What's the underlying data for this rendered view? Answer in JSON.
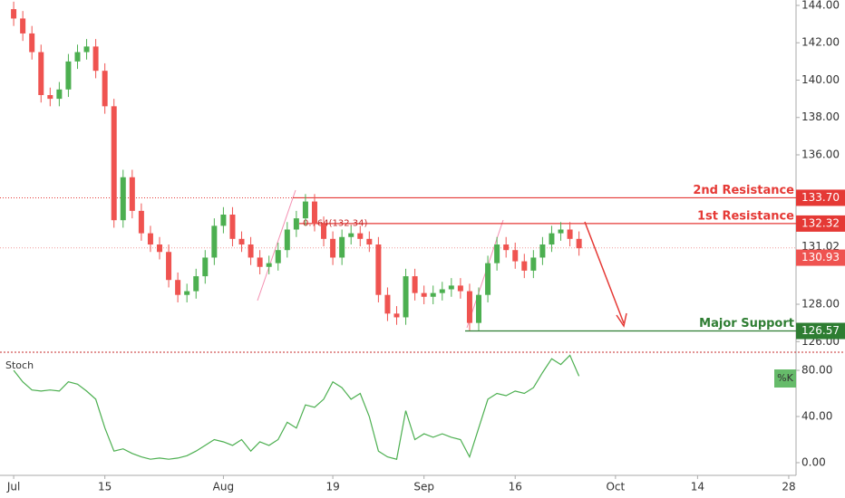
{
  "chart_data": {
    "type": "candlestick",
    "xlim": [
      -1.5,
      85.8
    ],
    "xticks": [
      {
        "value": 0,
        "label": "Jul"
      },
      {
        "value": 10,
        "label": "15"
      },
      {
        "value": 23,
        "label": "Aug"
      },
      {
        "value": 35,
        "label": "19"
      },
      {
        "value": 45,
        "label": "Sep"
      },
      {
        "value": 55,
        "label": "16"
      },
      {
        "value": 66,
        "label": "Oct"
      },
      {
        "value": 75,
        "label": "14"
      },
      {
        "value": 85,
        "label": "28"
      }
    ],
    "ylim": [
      125.48,
      144.29
    ],
    "yticks": [
      {
        "value": 126,
        "label": "126.00"
      },
      {
        "value": 128,
        "label": "128.00"
      },
      {
        "value": 136,
        "label": "136.00"
      },
      {
        "value": 138,
        "label": "138.00"
      },
      {
        "value": 140,
        "label": "140.00"
      },
      {
        "value": 142,
        "label": "142.00"
      },
      {
        "value": 144,
        "label": "144.00"
      }
    ],
    "up_color": "#4caf50",
    "down_color": "#ef5350",
    "open": [
      143.8,
      143.3,
      142.5,
      141.5,
      139.2,
      139.0,
      139.5,
      141.0,
      141.5,
      141.8,
      140.5,
      138.6,
      132.5,
      134.8,
      133.0,
      131.8,
      131.2,
      130.8,
      129.3,
      128.5,
      128.7,
      129.5,
      130.5,
      132.2,
      132.8,
      131.5,
      131.2,
      130.5,
      130.0,
      130.2,
      130.9,
      132.0,
      132.6,
      133.5,
      132.3,
      131.5,
      130.5,
      131.6,
      131.8,
      131.5,
      131.2,
      128.5,
      127.5,
      127.3,
      129.5,
      128.6,
      128.4,
      128.6,
      128.8,
      129.0,
      128.7,
      127.0,
      128.5,
      130.2,
      131.2,
      130.9,
      130.3,
      129.8,
      130.5,
      131.2,
      131.8,
      132.0,
      131.5
    ],
    "high": [
      144.2,
      143.7,
      142.9,
      141.9,
      139.6,
      139.9,
      141.4,
      141.9,
      142.2,
      142.2,
      140.9,
      139.0,
      135.2,
      135.2,
      133.4,
      132.2,
      131.6,
      131.2,
      129.7,
      129.1,
      129.9,
      130.9,
      132.6,
      133.2,
      133.2,
      131.9,
      131.6,
      130.9,
      130.6,
      131.3,
      132.4,
      133.0,
      133.9,
      133.9,
      132.7,
      131.9,
      132.0,
      132.2,
      132.2,
      131.9,
      131.6,
      128.9,
      127.9,
      129.9,
      129.9,
      129.0,
      129.0,
      129.2,
      129.4,
      129.4,
      129.1,
      128.9,
      130.6,
      131.6,
      131.6,
      131.3,
      130.7,
      130.9,
      131.6,
      132.2,
      132.4,
      132.4,
      131.9
    ],
    "low": [
      142.9,
      142.1,
      141.1,
      138.8,
      138.6,
      138.6,
      139.1,
      140.6,
      141.1,
      140.1,
      138.2,
      132.1,
      132.1,
      132.6,
      131.4,
      130.8,
      130.4,
      128.9,
      128.1,
      128.1,
      128.3,
      129.1,
      130.1,
      131.8,
      131.1,
      130.8,
      130.1,
      129.6,
      129.6,
      129.8,
      130.5,
      131.6,
      132.2,
      131.9,
      131.1,
      130.1,
      130.1,
      131.2,
      131.1,
      130.8,
      128.1,
      127.1,
      126.9,
      126.9,
      128.2,
      128.0,
      128.0,
      128.2,
      128.4,
      128.3,
      126.6,
      126.6,
      128.1,
      129.8,
      130.5,
      129.9,
      129.4,
      129.4,
      130.1,
      130.8,
      131.4,
      131.1,
      130.6
    ],
    "close": [
      143.3,
      142.5,
      141.5,
      139.2,
      139.0,
      139.5,
      141.0,
      141.5,
      141.8,
      140.5,
      138.6,
      132.5,
      134.8,
      133.0,
      131.8,
      131.2,
      130.8,
      129.3,
      128.5,
      128.7,
      129.5,
      130.5,
      132.2,
      132.8,
      131.5,
      131.2,
      130.5,
      130.0,
      130.2,
      130.9,
      132.0,
      132.6,
      133.5,
      132.3,
      131.5,
      130.5,
      131.6,
      131.8,
      131.5,
      131.2,
      128.5,
      127.5,
      127.3,
      129.5,
      128.6,
      128.4,
      128.6,
      128.8,
      129.0,
      128.7,
      127.0,
      128.5,
      130.2,
      131.2,
      130.9,
      130.3,
      129.8,
      130.5,
      131.2,
      131.8,
      132.0,
      131.5,
      131.0
    ],
    "levels": [
      {
        "name": "2nd Resistance",
        "value": 133.7,
        "label": "133.70",
        "color": "#e53935"
      },
      {
        "name": "1st Resistance",
        "value": 132.32,
        "label": "132.32",
        "color": "#e53935"
      },
      {
        "name": "Major Support",
        "value": 126.57,
        "label": "126.57",
        "color": "#2e7d32"
      }
    ],
    "price_labels": [
      {
        "value": 131.02,
        "label": "131.02"
      },
      {
        "value": 130.93,
        "label": "130.93"
      }
    ],
    "annotation": "0.764(132.34)",
    "stoch": {
      "name": "Stoch",
      "series_name": "%K",
      "color": "#4caf50",
      "ylim": [
        -11,
        94.9
      ],
      "yticks": [
        {
          "value": 0,
          "label": "0.00"
        },
        {
          "value": 40,
          "label": "40.00"
        },
        {
          "value": 80,
          "label": "80.00"
        }
      ],
      "values": [
        80,
        70,
        63,
        62,
        63,
        62,
        70,
        68,
        62,
        55,
        30,
        10,
        12,
        8,
        5,
        3,
        4,
        3,
        4,
        6,
        10,
        15,
        20,
        18,
        15,
        20,
        10,
        18,
        15,
        20,
        35,
        30,
        50,
        48,
        55,
        70,
        65,
        55,
        60,
        40,
        10,
        5,
        3,
        45,
        20,
        25,
        22,
        25,
        22,
        20,
        5,
        30,
        55,
        60,
        58,
        62,
        60,
        65,
        78,
        90,
        85,
        93,
        75
      ]
    }
  }
}
